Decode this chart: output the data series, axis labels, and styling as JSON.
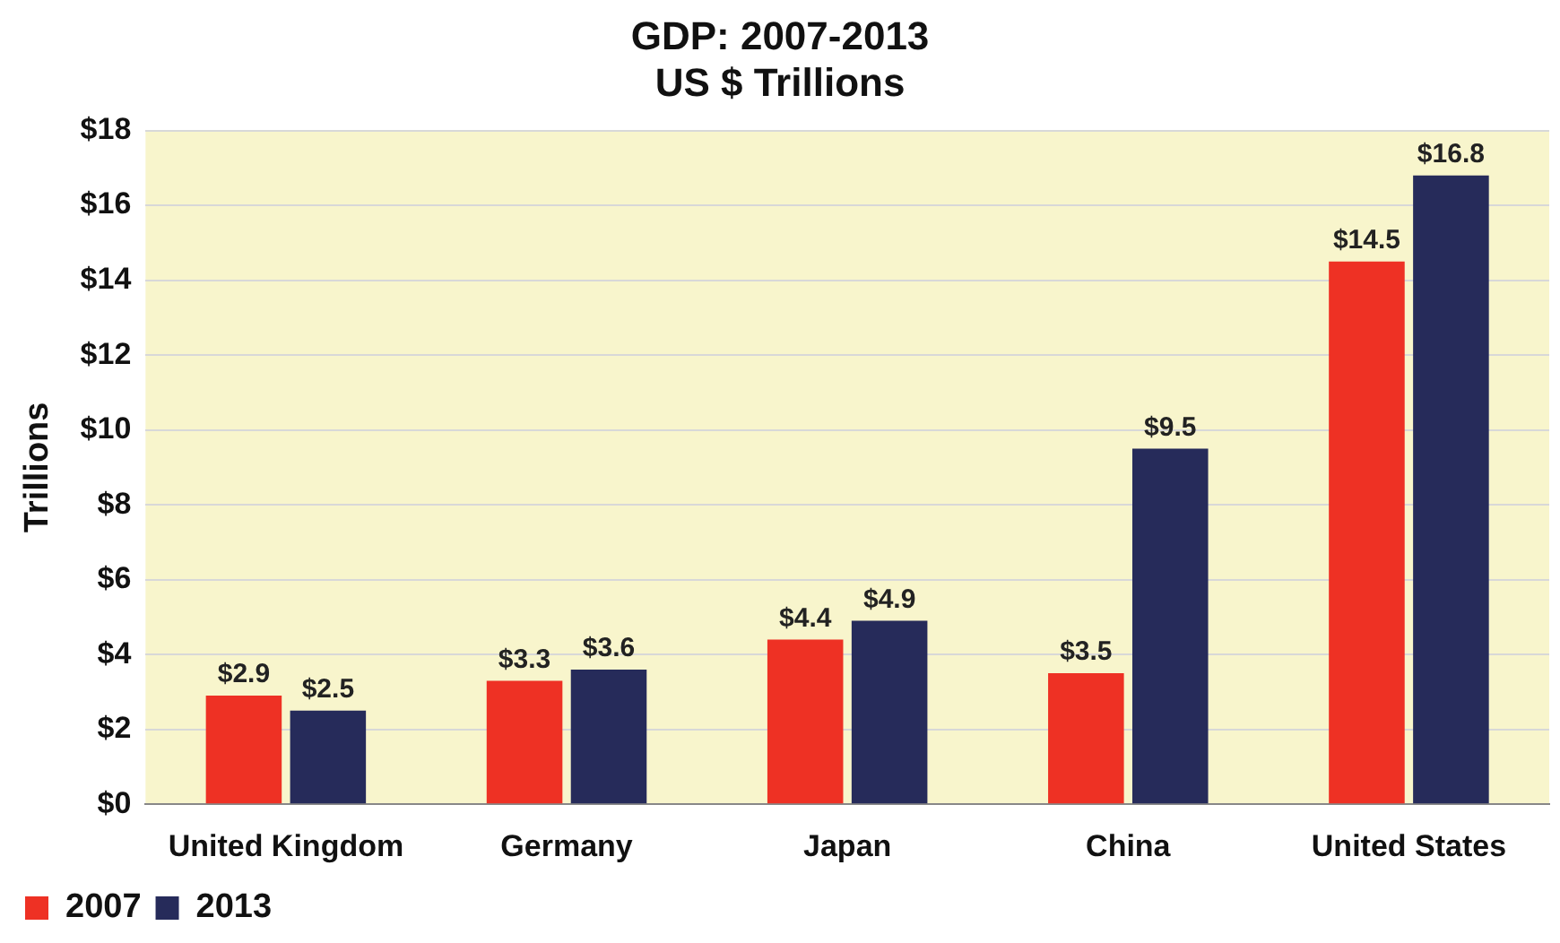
{
  "chart_data": {
    "type": "bar",
    "title": "GDP: 2007-2013",
    "subtitle": "US $ Trillions",
    "ylabel": "Trillions",
    "categories": [
      "United Kingdom",
      "Germany",
      "Japan",
      "China",
      "United States"
    ],
    "series": [
      {
        "name": "2007",
        "color": "#ee3124",
        "values": [
          2.9,
          3.3,
          4.4,
          3.5,
          14.5
        ],
        "value_labels": [
          "$2.9",
          "$3.3",
          "$4.4",
          "$3.5",
          "$14.5"
        ]
      },
      {
        "name": "2013",
        "color": "#262b5a",
        "values": [
          2.5,
          3.6,
          4.9,
          9.5,
          16.8
        ],
        "value_labels": [
          "$2.5",
          "$3.6",
          "$4.9",
          "$9.5",
          "$16.8"
        ]
      }
    ],
    "ylim": [
      0,
      18
    ],
    "yticks": [
      {
        "value": 0,
        "label": "$0"
      },
      {
        "value": 2,
        "label": "$2"
      },
      {
        "value": 4,
        "label": "$4"
      },
      {
        "value": 6,
        "label": "$6"
      },
      {
        "value": 8,
        "label": "$8"
      },
      {
        "value": 10,
        "label": "$10"
      },
      {
        "value": 12,
        "label": "$12"
      },
      {
        "value": 14,
        "label": "$14"
      },
      {
        "value": 16,
        "label": "$16"
      },
      {
        "value": 18,
        "label": "$18"
      }
    ],
    "grid": "y",
    "legend": "bottom left"
  }
}
